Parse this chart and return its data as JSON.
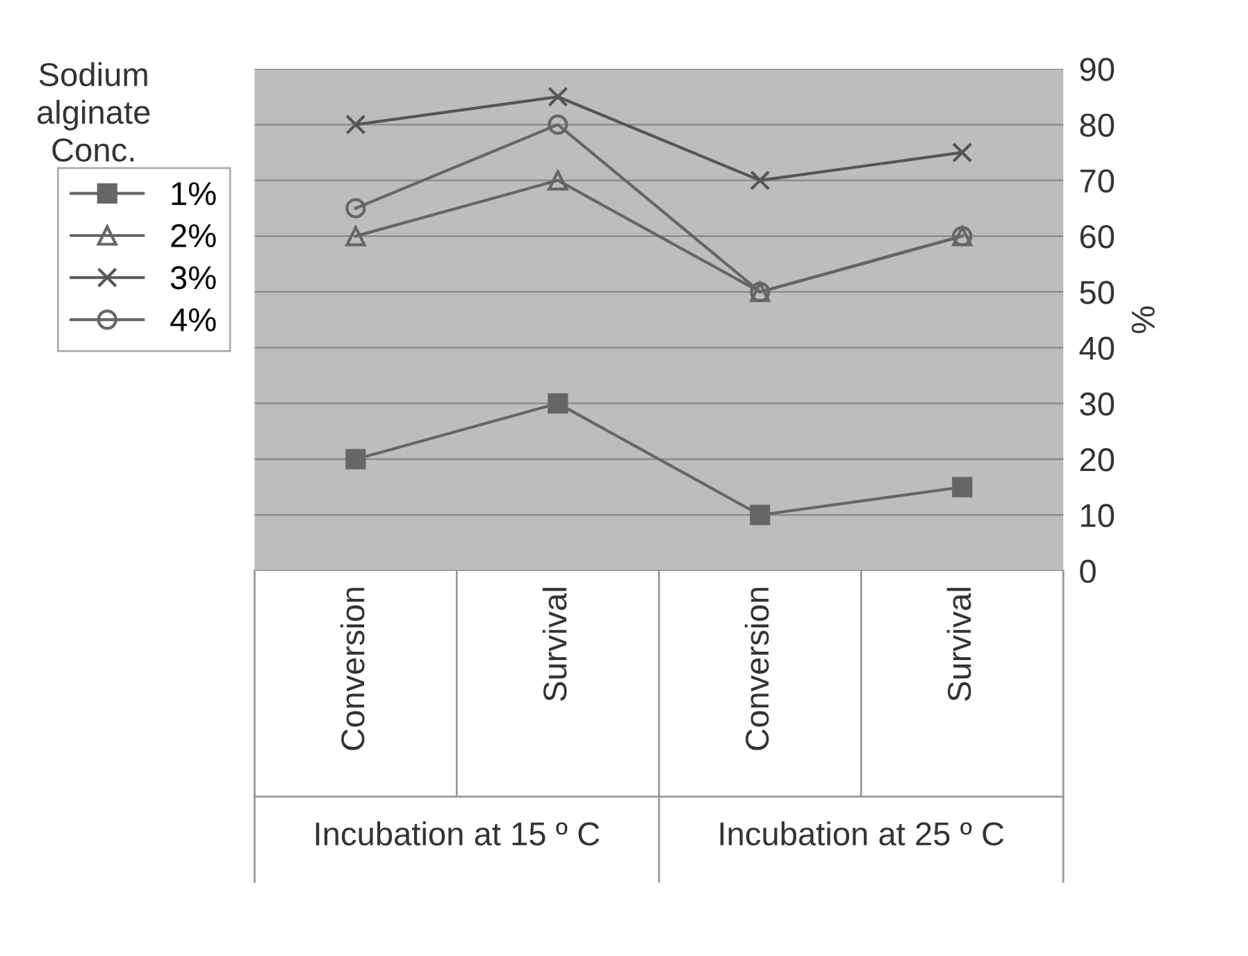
{
  "chart_data": {
    "type": "line",
    "categories": [
      "Conversion",
      "Survival",
      "Conversion",
      "Survival"
    ],
    "series": [
      {
        "name": "1%",
        "color": "#666666",
        "marker": "square",
        "values": [
          20,
          30,
          10,
          15
        ]
      },
      {
        "name": "2%",
        "color": "#666666",
        "marker": "triangle",
        "values": [
          60,
          70,
          50,
          60
        ]
      },
      {
        "name": "3%",
        "color": "#555555",
        "marker": "cross",
        "values": [
          80,
          85,
          70,
          75
        ]
      },
      {
        "name": "4%",
        "color": "#666666",
        "marker": "circle",
        "values": [
          65,
          80,
          50,
          60
        ]
      }
    ],
    "legend_title": "Sodium alginate Conc.",
    "ylabel": "%",
    "annotations": [
      "Incubation at 15 º C",
      "Incubation at 25 º C"
    ],
    "ylim": [
      0,
      90
    ],
    "yticks": [
      0,
      10,
      20,
      30,
      40,
      50,
      60,
      70,
      80,
      90
    ],
    "grid": "y",
    "legend": "left",
    "line_style": "solid"
  }
}
